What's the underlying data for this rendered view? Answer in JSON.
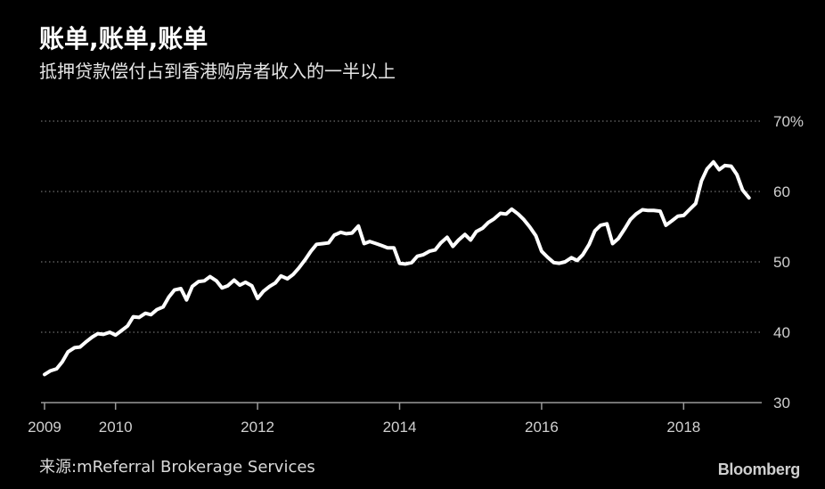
{
  "header": {
    "title": "账单,账单,账单",
    "subtitle": "抵押贷款偿付占到香港购房者收入的一半以上"
  },
  "footer": {
    "source": "来源:mReferral Brokerage Services",
    "logo": "Bloomberg"
  },
  "colors": {
    "background": "#000000",
    "line": "#ffffff",
    "grid": "#6e6e6e",
    "text": "#d0d0d0"
  },
  "chart_data": {
    "type": "line",
    "title": "账单,账单,账单",
    "subtitle": "抵押贷款偿付占到香港购房者收入的一半以上",
    "xlim": [
      2008.95,
      2019.1
    ],
    "ylim": [
      30,
      70
    ],
    "y_ticks": [
      30,
      40,
      50,
      60,
      70
    ],
    "y_tick_labels": [
      "30",
      "40",
      "50",
      "60",
      "70%"
    ],
    "x_ticks": [
      2009,
      2010,
      2012,
      2014,
      2016,
      2018
    ],
    "x_tick_labels": [
      "2009",
      "2010",
      "2012",
      "2014",
      "2016",
      "2018"
    ],
    "grid": "horizontal dotted",
    "y_axis_side": "right",
    "series": [
      {
        "x": [
          2009.0,
          2009.08,
          2009.17,
          2009.25,
          2009.33,
          2009.42,
          2009.5,
          2009.58,
          2009.67,
          2009.75,
          2009.83,
          2009.92,
          2010.0,
          2010.08,
          2010.17,
          2010.25,
          2010.33,
          2010.42,
          2010.5,
          2010.58,
          2010.67,
          2010.75,
          2010.83,
          2010.92,
          2011.0,
          2011.08,
          2011.17,
          2011.25,
          2011.33,
          2011.42,
          2011.5,
          2011.58,
          2011.67,
          2011.75,
          2011.83,
          2011.92,
          2012.0,
          2012.08,
          2012.17,
          2012.25,
          2012.33,
          2012.42,
          2012.5,
          2012.58,
          2012.67,
          2012.75,
          2012.83,
          2012.92,
          2013.0,
          2013.08,
          2013.17,
          2013.25,
          2013.33,
          2013.42,
          2013.5,
          2013.58,
          2013.67,
          2013.75,
          2013.83,
          2013.92,
          2014.0,
          2014.08,
          2014.17,
          2014.25,
          2014.33,
          2014.42,
          2014.5,
          2014.58,
          2014.67,
          2014.75,
          2014.83,
          2014.92,
          2015.0,
          2015.08,
          2015.17,
          2015.25,
          2015.33,
          2015.42,
          2015.5,
          2015.58,
          2015.67,
          2015.75,
          2015.83,
          2015.92,
          2016.0,
          2016.08,
          2016.17,
          2016.25,
          2016.33,
          2016.42,
          2016.5,
          2016.58,
          2016.67,
          2016.75,
          2016.83,
          2016.92,
          2017.0,
          2017.08,
          2017.17,
          2017.25,
          2017.33,
          2017.42,
          2017.5,
          2017.58,
          2017.67,
          2017.75,
          2017.83,
          2017.92,
          2018.0,
          2018.08,
          2018.17,
          2018.25,
          2018.33,
          2018.42,
          2018.5,
          2018.58,
          2018.67,
          2018.75,
          2018.83,
          2018.92
        ],
        "values": [
          34.0,
          34.5,
          34.8,
          35.8,
          37.2,
          37.8,
          37.9,
          38.6,
          39.3,
          39.8,
          39.7,
          40.0,
          39.6,
          40.2,
          40.9,
          42.2,
          42.1,
          42.7,
          42.5,
          43.2,
          43.6,
          45.0,
          46.0,
          46.2,
          44.6,
          46.5,
          47.2,
          47.3,
          47.9,
          47.3,
          46.3,
          46.6,
          47.4,
          46.7,
          47.1,
          46.6,
          44.8,
          45.8,
          46.5,
          47.0,
          48.0,
          47.6,
          48.2,
          49.1,
          50.3,
          51.5,
          52.5,
          52.6,
          52.7,
          53.8,
          54.2,
          54.0,
          54.1,
          55.1,
          52.6,
          52.9,
          52.6,
          52.3,
          52.0,
          52.0,
          49.8,
          49.7,
          49.9,
          50.8,
          51.0,
          51.5,
          51.7,
          52.7,
          53.5,
          52.2,
          53.1,
          53.9,
          53.1,
          54.3,
          54.8,
          55.6,
          56.1,
          56.9,
          56.8,
          57.5,
          56.8,
          56.0,
          55.0,
          53.7,
          51.5,
          50.7,
          49.9,
          49.8,
          50.0,
          50.6,
          50.2,
          51.0,
          52.5,
          54.4,
          55.2,
          55.4,
          52.6,
          53.3,
          54.7,
          56.0,
          56.8,
          57.4,
          57.3,
          57.3,
          57.2,
          55.2,
          55.8,
          56.5,
          56.6,
          57.4,
          58.3,
          61.5,
          63.2,
          64.2,
          63.1,
          63.7,
          63.6,
          62.4,
          60.2,
          59.1
        ]
      }
    ]
  }
}
